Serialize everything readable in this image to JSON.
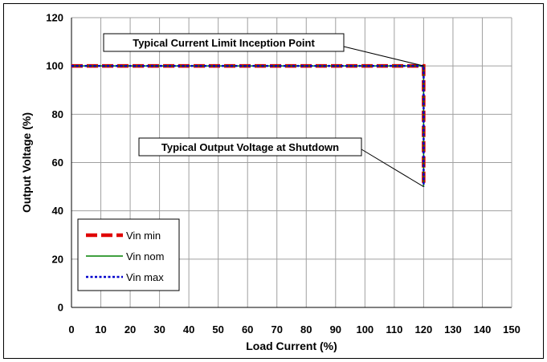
{
  "chart_data": {
    "type": "line",
    "xlabel": "Load Current (%)",
    "ylabel": "Output Voltage (%)",
    "xlim": [
      0,
      150
    ],
    "ylim": [
      0,
      120
    ],
    "xticks": [
      "0",
      "10",
      "20",
      "30",
      "40",
      "50",
      "60",
      "70",
      "80",
      "90",
      "100",
      "110",
      "120",
      "130",
      "140",
      "150"
    ],
    "yticks": [
      "0",
      "20",
      "40",
      "60",
      "80",
      "100",
      "120"
    ],
    "grid": true,
    "legend_position": "bottom-left",
    "series": [
      {
        "name": "Vin min",
        "color": "#e00000",
        "style": "dashed-thick",
        "x": [
          0,
          120,
          120
        ],
        "y": [
          100,
          100,
          50
        ]
      },
      {
        "name": "Vin nom",
        "color": "#008000",
        "style": "solid",
        "x": [
          0,
          120,
          120
        ],
        "y": [
          100,
          100,
          50
        ]
      },
      {
        "name": "Vin max",
        "color": "#0000cc",
        "style": "dotted",
        "x": [
          0,
          120,
          120
        ],
        "y": [
          100,
          100,
          50
        ]
      }
    ],
    "annotations": [
      {
        "text": "Typical Current Limit Inception Point",
        "target": [
          120,
          100
        ]
      },
      {
        "text": "Typical Output Voltage at Shutdown",
        "target": [
          120,
          50
        ]
      }
    ]
  }
}
